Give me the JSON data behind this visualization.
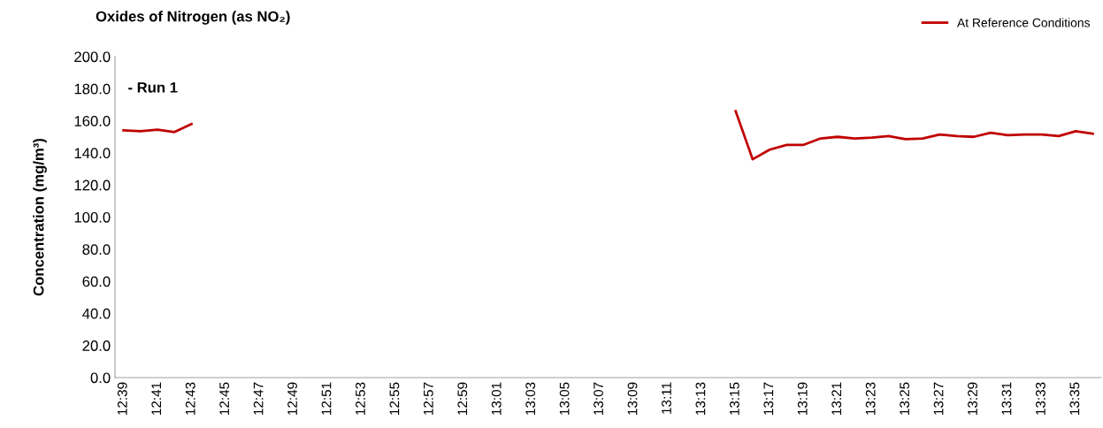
{
  "chart_data": {
    "type": "line",
    "title": "Oxides of Nitrogen (as NO₂)",
    "ylabel": "Concentration (mg/m³)",
    "annotations": [
      "- Run 1"
    ],
    "categories": [
      "12:39",
      null,
      "12:41",
      null,
      "12:43",
      null,
      "12:45",
      null,
      "12:47",
      null,
      "12:49",
      null,
      "12:51",
      null,
      "12:53",
      null,
      "12:55",
      null,
      "12:57",
      null,
      "12:59",
      null,
      "13:01",
      null,
      "13:03",
      null,
      "13:05",
      null,
      "13:07",
      null,
      "13:09",
      null,
      "13:11",
      null,
      "13:13",
      null,
      "13:15",
      null,
      "13:17",
      null,
      "13:19",
      null,
      "13:21",
      null,
      "13:23",
      null,
      "13:25",
      null,
      "13:27",
      null,
      "13:29",
      null,
      "13:31",
      null,
      "13:33",
      null,
      "13:35",
      null
    ],
    "series": [
      {
        "name": "At Reference Conditions",
        "color": "#c00000",
        "values": [
          154,
          153.5,
          154.5,
          153,
          158,
          null,
          null,
          null,
          null,
          null,
          null,
          null,
          null,
          null,
          null,
          null,
          null,
          null,
          null,
          null,
          null,
          null,
          null,
          null,
          null,
          null,
          null,
          null,
          null,
          null,
          null,
          null,
          null,
          null,
          null,
          null,
          166,
          136,
          142,
          145,
          145,
          149,
          150,
          149,
          149.5,
          150.5,
          148.5,
          149,
          151.5,
          150.5,
          150,
          152.5,
          151,
          151.5,
          151.5,
          150.5,
          153.5,
          152
        ]
      }
    ],
    "ylim": [
      0,
      200
    ],
    "yticks": [
      {
        "value": 0,
        "label": "0.0"
      },
      {
        "value": 20,
        "label": "20.0"
      },
      {
        "value": 40,
        "label": "40.0"
      },
      {
        "value": 60,
        "label": "60.0"
      },
      {
        "value": 80,
        "label": "80.0"
      },
      {
        "value": 100,
        "label": "100.0"
      },
      {
        "value": 120,
        "label": "120.0"
      },
      {
        "value": 140,
        "label": "140.0"
      },
      {
        "value": 160,
        "label": "160.0"
      },
      {
        "value": 180,
        "label": "180.0"
      },
      {
        "value": 200,
        "label": "200.0"
      }
    ],
    "legend": "top right",
    "grid": false,
    "marker": "none",
    "line_style": "solid"
  }
}
